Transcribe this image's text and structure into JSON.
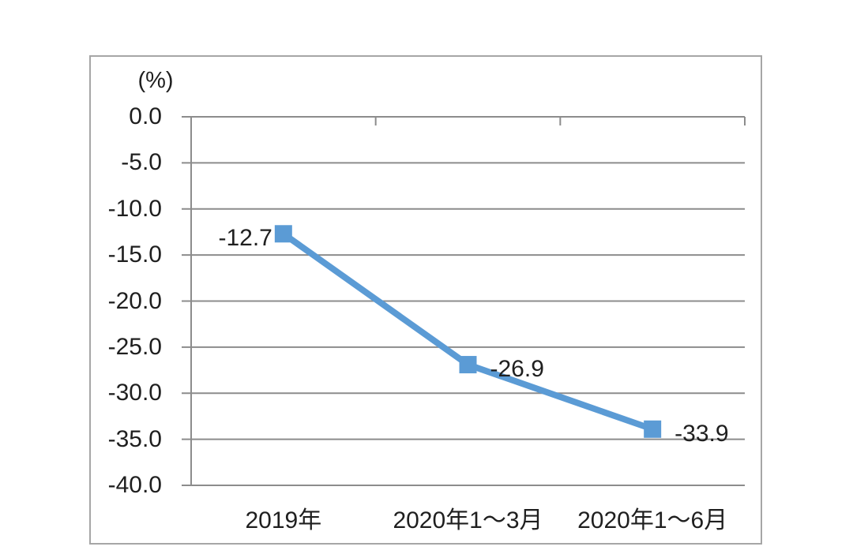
{
  "chart_data": {
    "type": "line",
    "title": "",
    "unit_label": "(%)",
    "categories": [
      "2019年",
      "2020年1～3月",
      "2020年1～6月"
    ],
    "series": [
      {
        "name": "",
        "values": [
          -12.7,
          -26.9,
          -33.9
        ]
      }
    ],
    "data_labels": [
      "-12.7",
      "-26.9",
      "-33.9"
    ],
    "data_label_sides": [
      "left",
      "right",
      "right"
    ],
    "yticks": [
      "0.0",
      "-5.0",
      "-10.0",
      "-15.0",
      "-20.0",
      "-25.0",
      "-30.0",
      "-35.0",
      "-40.0"
    ],
    "ylim": [
      -40,
      0
    ],
    "xlabel": "",
    "ylabel": "(%)",
    "grid": true,
    "legend_position": "none",
    "marker": "square",
    "colors": {
      "line": "#5B9BD5",
      "marker": "#5B9BD5",
      "gridline": "#8c8c8c",
      "frame_border": "#a6a6a6",
      "text": "#1f1f1f"
    }
  }
}
